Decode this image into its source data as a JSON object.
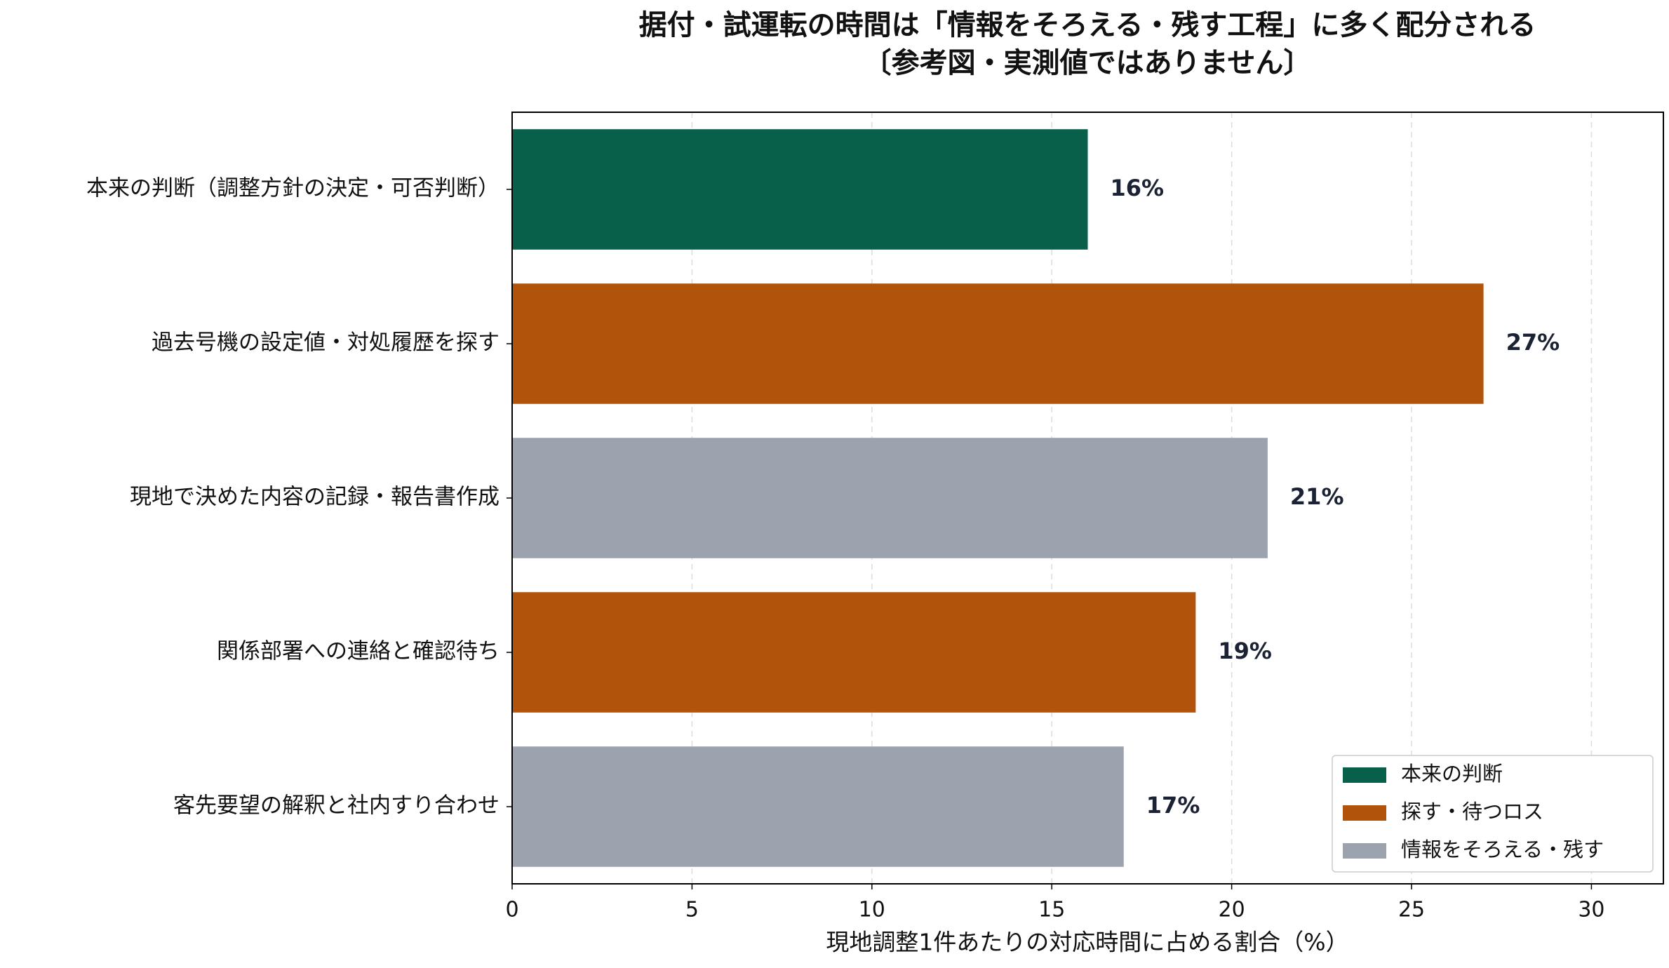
{
  "chart_data": {
    "type": "bar",
    "orientation": "horizontal",
    "title": "据付・試運転の時間は「情報をそろえる・残す工程」に多く配分される",
    "subtitle": "〔参考図・実測値ではありません〕",
    "x_label": "現地調整1件あたりの対応時間に占める割合（%）",
    "categories": [
      "本来の判断（調整方針の決定・可否判断）",
      "過去号機の設定値・対処履歴を探す",
      "現地で決めた内容の記録・報告書作成",
      "関係部署への連絡と確認待ち",
      "客先要望の解釈と社内すり合わせ"
    ],
    "values": [
      16,
      27,
      21,
      19,
      17
    ],
    "value_labels": [
      "16%",
      "27%",
      "21%",
      "19%",
      "17%"
    ],
    "colors": [
      "#08604a",
      "#b1530b",
      "#9ca3af",
      "#b1530b",
      "#9ca3af"
    ],
    "legend": [
      {
        "name": "本来の判断",
        "color": "#08604a"
      },
      {
        "name": "探す・待つロス",
        "color": "#b1530b"
      },
      {
        "name": "情報をそろえる・残す",
        "color": "#9ca3af"
      }
    ],
    "legend_position": "lower right",
    "xlim": [
      0,
      32
    ],
    "xticks": [
      0,
      5,
      10,
      15,
      20,
      25,
      30
    ],
    "grid": true
  }
}
